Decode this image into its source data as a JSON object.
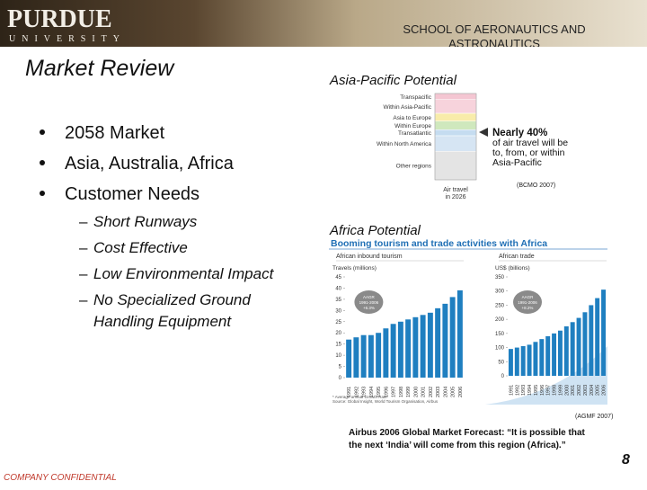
{
  "header": {
    "logo": "PURDUE",
    "logo_sub": "UNIVERSITY",
    "school_line1": "SCHOOL OF AERONAUTICS AND",
    "school_line2": "ASTRONAUTICS"
  },
  "title": "Market Review",
  "bullets": [
    "2058 Market",
    "Asia, Australia, Africa",
    "Customer Needs"
  ],
  "sub_bullets": [
    "Short Runways",
    "Cost Effective",
    "Low Environmental Impact",
    "No Specialized Ground Handling Equipment"
  ],
  "asia": {
    "heading": "Asia-Pacific Potential",
    "segments": [
      {
        "name": "Transpacific",
        "value": 7,
        "color": "#f4c6d2"
      },
      {
        "name": "Within Asia-Pacific",
        "value": 16,
        "color": "#f7d3dc"
      },
      {
        "name": "Asia to Europe",
        "value": 9,
        "color": "#f8ecaa"
      },
      {
        "name": "Within Europe",
        "value": 10,
        "color": "#cfe8bd"
      },
      {
        "name": "Transatlantic",
        "value": 7,
        "color": "#c5dcf0"
      },
      {
        "name": "Within North America",
        "value": 18,
        "color": "#d6e5f3"
      },
      {
        "name": "Other regions",
        "value": 33,
        "color": "#e4e4e4"
      }
    ],
    "callout": [
      "Nearly 40%",
      "of air travel will be",
      "to, from, or within",
      "Asia-Pacific"
    ],
    "axis_label": [
      "Air travel",
      "in 2026"
    ],
    "source": "(BCMO 2007)"
  },
  "africa": {
    "heading": "Africa Potential",
    "banner": "Booming tourism and trade activities with Africa",
    "left": {
      "title": "African inbound tourism",
      "unit": "Travels (millions)",
      "annotation": [
        "AAGR",
        "1991-2006",
        "+6.3%"
      ],
      "ylim": [
        0,
        45
      ],
      "yticks": [
        0,
        5,
        10,
        15,
        20,
        25,
        30,
        35,
        40,
        45
      ],
      "categories": [
        "1991",
        "1992",
        "1993",
        "1994",
        "1995",
        "1996",
        "1997",
        "1998",
        "1999",
        "2000",
        "2001",
        "2002",
        "2003",
        "2004",
        "2005",
        "2006"
      ],
      "values": [
        17,
        18,
        19,
        19,
        20,
        22,
        24,
        25,
        26,
        27,
        28,
        29,
        31,
        33,
        36,
        39
      ],
      "color": "#1f7fc0"
    },
    "right": {
      "title": "African trade",
      "unit": "US$ (billions)",
      "annotation": [
        "AAGR",
        "1991-2006",
        "+8.2%"
      ],
      "ylim": [
        0,
        350
      ],
      "yticks": [
        0,
        50,
        100,
        150,
        200,
        250,
        300,
        350
      ],
      "categories": [
        "1991",
        "1992",
        "1993",
        "1994",
        "1995",
        "1996",
        "1997",
        "1998",
        "1999",
        "2000",
        "2001",
        "2002",
        "2003",
        "2004",
        "2005",
        "2006"
      ],
      "values": [
        95,
        100,
        105,
        110,
        120,
        130,
        140,
        150,
        160,
        175,
        190,
        205,
        225,
        250,
        275,
        305
      ],
      "color": "#1f7fc0"
    },
    "footnote": [
      "* Average annual Growth Rate",
      "Source: Global Insight, World Tourism Organisation, Airbus"
    ],
    "source": "(AGMF 2007)"
  },
  "quote": [
    "Airbus 2006 Global Market Forecast: “It is possible that",
    "the next ‘India’ will come from this region (Africa).”"
  ],
  "page_number": "8",
  "footer": "COMPANY CONFIDENTIAL"
}
